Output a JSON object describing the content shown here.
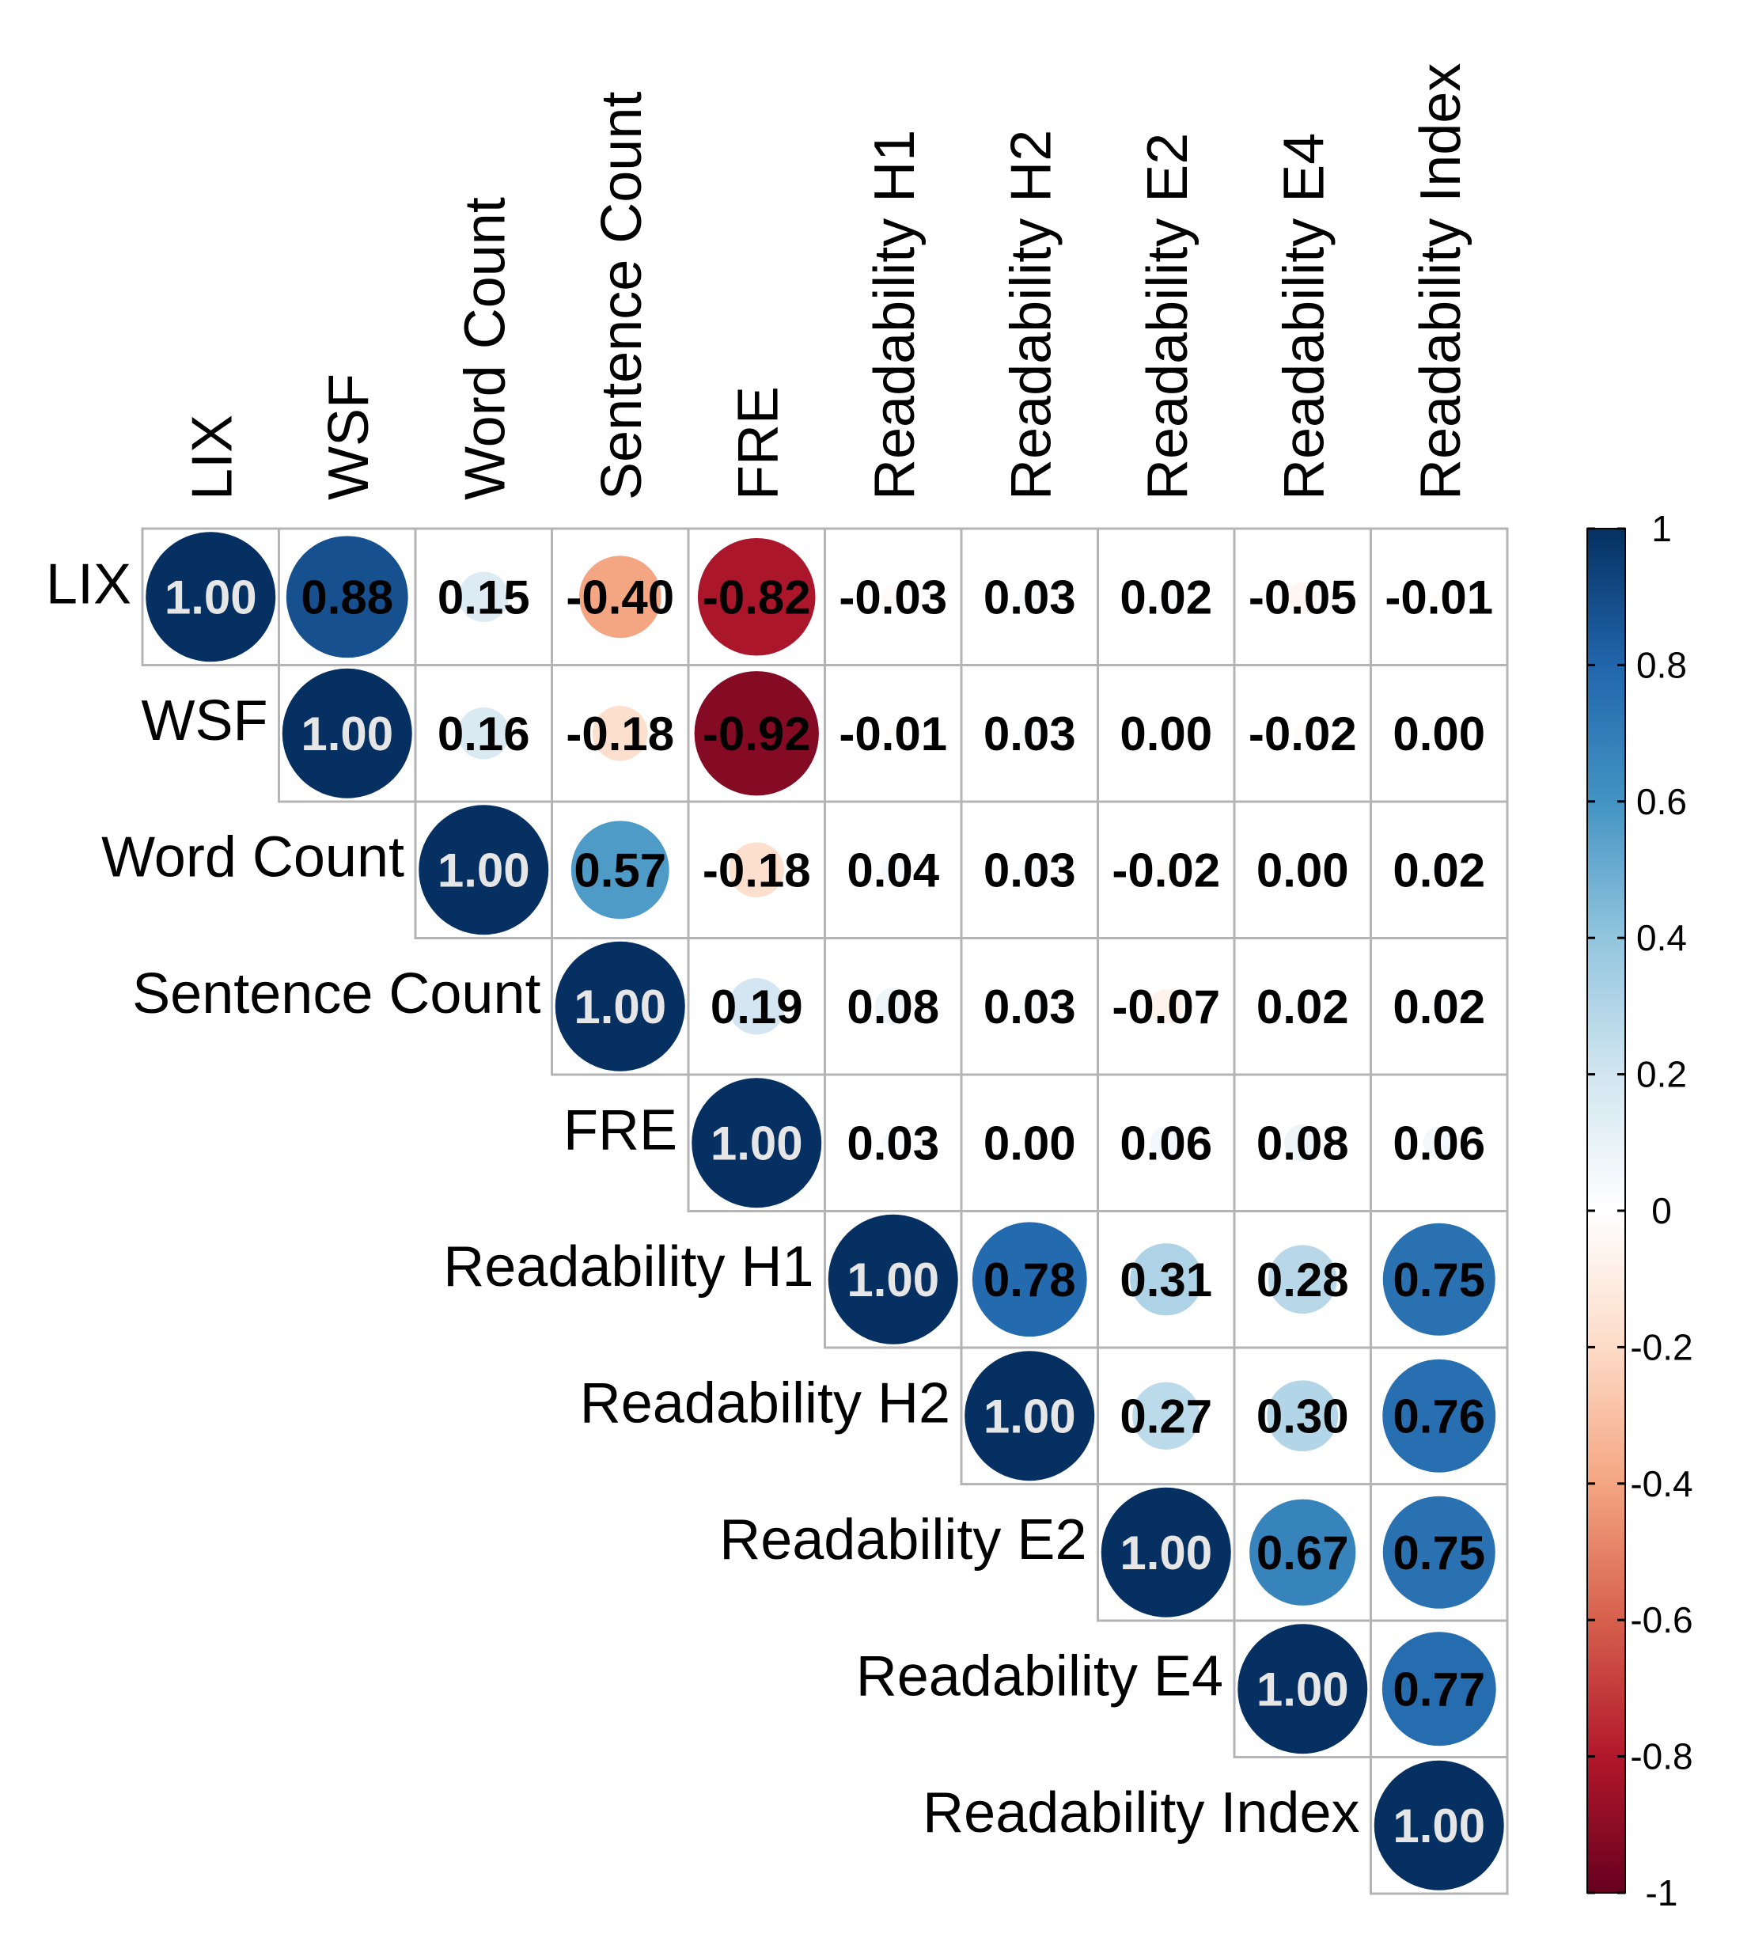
{
  "chart_data": {
    "type": "heatmap",
    "subtype": "correlation-matrix-upper-triangle",
    "variables": [
      "LIX",
      "WSF",
      "Word Count",
      "Sentence Count",
      "FRE",
      "Readability H1",
      "Readability H2",
      "Readability E2",
      "Readability E4",
      "Readability Index"
    ],
    "matrix": [
      [
        1.0,
        0.88,
        0.15,
        -0.4,
        -0.82,
        -0.03,
        0.03,
        0.02,
        -0.05,
        -0.01
      ],
      [
        null,
        1.0,
        0.16,
        -0.18,
        -0.92,
        -0.01,
        0.03,
        0.0,
        -0.02,
        0.0
      ],
      [
        null,
        null,
        1.0,
        0.57,
        -0.18,
        0.04,
        0.03,
        -0.02,
        0.0,
        0.02
      ],
      [
        null,
        null,
        null,
        1.0,
        0.19,
        0.08,
        0.03,
        -0.07,
        0.02,
        0.02
      ],
      [
        null,
        null,
        null,
        null,
        1.0,
        0.03,
        0.0,
        0.06,
        0.08,
        0.06
      ],
      [
        null,
        null,
        null,
        null,
        null,
        1.0,
        0.78,
        0.31,
        0.28,
        0.75
      ],
      [
        null,
        null,
        null,
        null,
        null,
        null,
        1.0,
        0.27,
        0.3,
        0.76
      ],
      [
        null,
        null,
        null,
        null,
        null,
        null,
        null,
        1.0,
        0.67,
        0.75
      ],
      [
        null,
        null,
        null,
        null,
        null,
        null,
        null,
        null,
        1.0,
        0.77
      ],
      [
        null,
        null,
        null,
        null,
        null,
        null,
        null,
        null,
        null,
        1.0
      ]
    ],
    "value_format": "0.00",
    "colorbar": {
      "range": [
        -1,
        1
      ],
      "ticks": [
        "1",
        "0.8",
        "0.6",
        "0.4",
        "0.2",
        "0",
        "-0.2",
        "-0.4",
        "-0.6",
        "-0.8",
        "-1"
      ],
      "tick_values": [
        1,
        0.8,
        0.6,
        0.4,
        0.2,
        0,
        -0.2,
        -0.4,
        -0.6,
        -0.8,
        -1
      ],
      "placement": "right",
      "colors": [
        "#67001f",
        "#b2182b",
        "#d6604d",
        "#f4a582",
        "#fddbc7",
        "#ffffff",
        "#d1e5f0",
        "#92c5de",
        "#4393c3",
        "#2166ac",
        "#053061"
      ]
    },
    "marker": "circle-size-and-color",
    "grid": true
  }
}
